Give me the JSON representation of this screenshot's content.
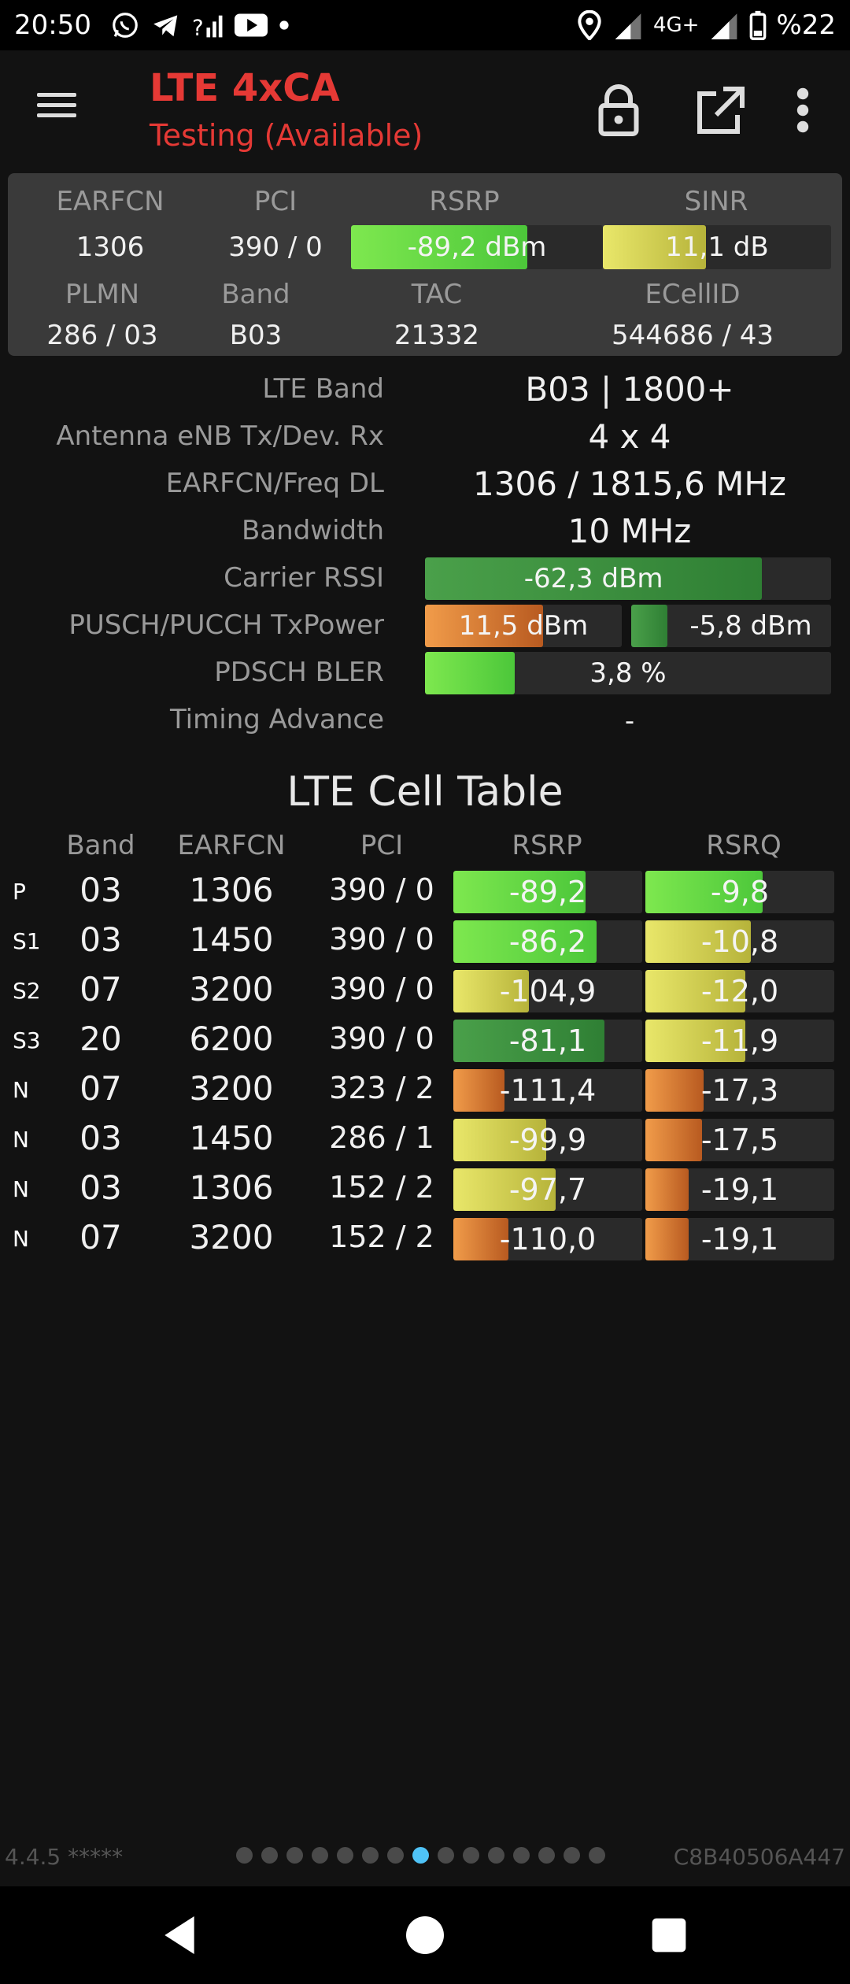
{
  "status_bar": {
    "time": "20:50",
    "left_icons": [
      "whatsapp-icon",
      "telegram-icon",
      "signal-question-icon",
      "youtube-icon",
      "dot-icon"
    ],
    "right_icons": [
      "location-icon",
      "signal-icon",
      "network-type",
      "signal-icon-2",
      "battery-icon"
    ],
    "network_type": "4G+",
    "battery": "%22"
  },
  "app_bar": {
    "title": "LTE 4xCA",
    "subtitle": "Testing (Available)"
  },
  "summary": {
    "earfcn_label": "EARFCN",
    "earfcn": "1306",
    "pci_label": "PCI",
    "pci": "390 / 0",
    "rsrp_label": "RSRP",
    "rsrp": "-89,2 dBm",
    "rsrp_level": 0.7,
    "sinr_label": "SINR",
    "sinr": "11,1 dB",
    "sinr_level": 0.45,
    "plmn_label": "PLMN",
    "plmn": "286 / 03",
    "band_label": "Band",
    "band": "B03",
    "tac_label": "TAC",
    "tac": "21332",
    "ecellid_label": "ECellID",
    "ecellid": "544686 / 43"
  },
  "details": {
    "lte_band_label": "LTE Band",
    "lte_band": "B03 | 1800+",
    "antenna_label": "Antenna eNB Tx/Dev. Rx",
    "antenna": "4 x 4",
    "earfcn_freq_label": "EARFCN/Freq DL",
    "earfcn_freq": "1306 / 1815,6 MHz",
    "bandwidth_label": "Bandwidth",
    "bandwidth": "10 MHz",
    "rssi_label": "Carrier RSSI",
    "rssi": "-62,3 dBm",
    "rssi_level": 0.83,
    "txpower_label": "PUSCH/PUCCH TxPower",
    "pusch": "11,5 dBm",
    "pusch_level": 0.6,
    "pucch": "-5,8 dBm",
    "pucch_level": 0.18,
    "bler_label": "PDSCH BLER",
    "bler": "3,8 %",
    "bler_level": 0.22,
    "ta_label": "Timing Advance",
    "ta": "-"
  },
  "cell_table": {
    "title": "LTE Cell Table",
    "headers": {
      "band": "Band",
      "earfcn": "EARFCN",
      "pci": "PCI",
      "rsrp": "RSRP",
      "rsrq": "RSRQ"
    },
    "rows": [
      {
        "type": "P",
        "band": "03",
        "earfcn": "1306",
        "pci": "390 / 0",
        "rsrp": "-89,2",
        "rsrp_level": 0.7,
        "rsrp_color": "bright",
        "rsrq": "-9,8",
        "rsrq_level": 0.62,
        "rsrq_color": "bright"
      },
      {
        "type": "S1",
        "band": "03",
        "earfcn": "1450",
        "pci": "390 / 0",
        "rsrp": "-86,2",
        "rsrp_level": 0.76,
        "rsrp_color": "bright",
        "rsrq": "-10,8",
        "rsrq_level": 0.56,
        "rsrq_color": "yellow"
      },
      {
        "type": "S2",
        "band": "07",
        "earfcn": "3200",
        "pci": "390 / 0",
        "rsrp": "-104,9",
        "rsrp_level": 0.4,
        "rsrp_color": "yellow",
        "rsrq": "-12,0",
        "rsrq_level": 0.53,
        "rsrq_color": "yellow"
      },
      {
        "type": "S3",
        "band": "20",
        "earfcn": "6200",
        "pci": "390 / 0",
        "rsrp": "-81,1",
        "rsrp_level": 0.8,
        "rsrp_color": "dark",
        "rsrq": "-11,9",
        "rsrq_level": 0.53,
        "rsrq_color": "yellow"
      },
      {
        "type": "N",
        "band": "07",
        "earfcn": "3200",
        "pci": "323 / 2",
        "rsrp": "-111,4",
        "rsrp_level": 0.27,
        "rsrp_color": "orange",
        "rsrq": "-17,3",
        "rsrq_level": 0.31,
        "rsrq_color": "orange"
      },
      {
        "type": "N",
        "band": "03",
        "earfcn": "1450",
        "pci": "286 / 1",
        "rsrp": "-99,9",
        "rsrp_level": 0.49,
        "rsrp_color": "yellow",
        "rsrq": "-17,5",
        "rsrq_level": 0.3,
        "rsrq_color": "orange"
      },
      {
        "type": "N",
        "band": "03",
        "earfcn": "1306",
        "pci": "152 / 2",
        "rsrp": "-97,7",
        "rsrp_level": 0.54,
        "rsrp_color": "yellow",
        "rsrq": "-19,1",
        "rsrq_level": 0.23,
        "rsrq_color": "orange"
      },
      {
        "type": "N",
        "band": "07",
        "earfcn": "3200",
        "pci": "152 / 2",
        "rsrp": "-110,0",
        "rsrp_level": 0.29,
        "rsrp_color": "orange",
        "rsrq": "-19,1",
        "rsrq_level": 0.23,
        "rsrq_color": "orange"
      }
    ]
  },
  "footer": {
    "version": "4.4.5 *****",
    "device_id": "C8B40506A447",
    "page_count": 15,
    "active_page": 8
  }
}
